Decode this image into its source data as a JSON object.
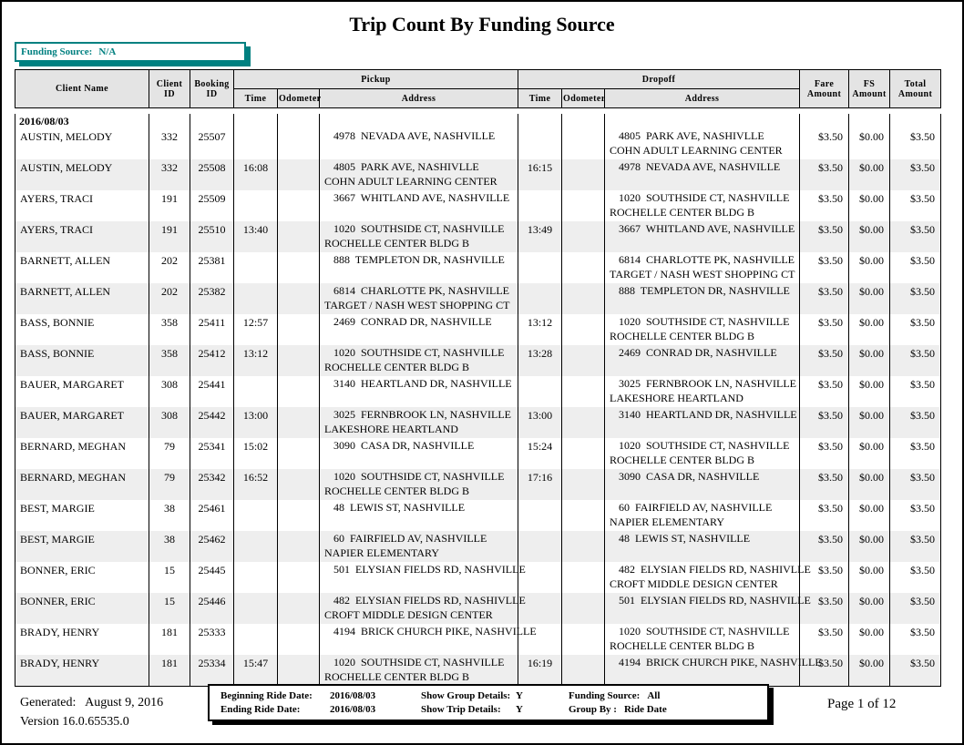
{
  "title": "Trip Count By Funding Source",
  "funding_box": {
    "label": "Funding Source:",
    "value": "N/A"
  },
  "table": {
    "headers": {
      "client_name": "Client Name",
      "client_id": "Client ID",
      "booking_id": "Booking ID",
      "pickup": "Pickup",
      "dropoff": "Dropoff",
      "time": "Time",
      "odometer": "Odometer",
      "address": "Address",
      "fare": "Fare Amount",
      "fs": "FS Amount",
      "total": "Total Amount"
    },
    "group_date": "2016/08/03",
    "rows": [
      {
        "client_name": "AUSTIN, MELODY",
        "client_id": "332",
        "booking_id": "25507",
        "p_time": "",
        "p_odo": "",
        "p_addr1": "4978  NEVADA AVE, NASHVILLE",
        "p_addr2": "",
        "d_time": "",
        "d_odo": "",
        "d_addr1": "4805  PARK AVE, NASHIVLLE",
        "d_addr2": "COHN ADULT LEARNING CENTER",
        "fare": "$3.50",
        "fs": "$0.00",
        "total": "$3.50"
      },
      {
        "client_name": "AUSTIN, MELODY",
        "client_id": "332",
        "booking_id": "25508",
        "p_time": "16:08",
        "p_odo": "",
        "p_addr1": "4805  PARK AVE, NASHIVLLE",
        "p_addr2": "COHN ADULT LEARNING CENTER",
        "d_time": "16:15",
        "d_odo": "",
        "d_addr1": "4978  NEVADA AVE, NASHVILLE",
        "d_addr2": "",
        "fare": "$3.50",
        "fs": "$0.00",
        "total": "$3.50"
      },
      {
        "client_name": "AYERS, TRACI",
        "client_id": "191",
        "booking_id": "25509",
        "p_time": "",
        "p_odo": "",
        "p_addr1": "3667  WHITLAND AVE, NASHVILLE",
        "p_addr2": "",
        "d_time": "",
        "d_odo": "",
        "d_addr1": "1020  SOUTHSIDE CT, NASHVILLE",
        "d_addr2": "ROCHELLE CENTER BLDG B",
        "fare": "$3.50",
        "fs": "$0.00",
        "total": "$3.50"
      },
      {
        "client_name": "AYERS, TRACI",
        "client_id": "191",
        "booking_id": "25510",
        "p_time": "13:40",
        "p_odo": "",
        "p_addr1": "1020  SOUTHSIDE CT, NASHVILLE",
        "p_addr2": "ROCHELLE CENTER BLDG B",
        "d_time": "13:49",
        "d_odo": "",
        "d_addr1": "3667  WHITLAND AVE, NASHVILLE",
        "d_addr2": "",
        "fare": "$3.50",
        "fs": "$0.00",
        "total": "$3.50"
      },
      {
        "client_name": "BARNETT, ALLEN",
        "client_id": "202",
        "booking_id": "25381",
        "p_time": "",
        "p_odo": "",
        "p_addr1": "888  TEMPLETON DR, NASHVILLE",
        "p_addr2": "",
        "d_time": "",
        "d_odo": "",
        "d_addr1": "6814  CHARLOTTE PK, NASHVILLE",
        "d_addr2": "TARGET / NASH WEST SHOPPING CT",
        "fare": "$3.50",
        "fs": "$0.00",
        "total": "$3.50"
      },
      {
        "client_name": "BARNETT, ALLEN",
        "client_id": "202",
        "booking_id": "25382",
        "p_time": "",
        "p_odo": "",
        "p_addr1": "6814  CHARLOTTE PK, NASHVILLE",
        "p_addr2": "TARGET / NASH WEST SHOPPING CT",
        "d_time": "",
        "d_odo": "",
        "d_addr1": "888  TEMPLETON DR, NASHVILLE",
        "d_addr2": "",
        "fare": "$3.50",
        "fs": "$0.00",
        "total": "$3.50"
      },
      {
        "client_name": "BASS, BONNIE",
        "client_id": "358",
        "booking_id": "25411",
        "p_time": "12:57",
        "p_odo": "",
        "p_addr1": "2469  CONRAD DR, NASHVILLE",
        "p_addr2": "",
        "d_time": "13:12",
        "d_odo": "",
        "d_addr1": "1020  SOUTHSIDE CT, NASHVILLE",
        "d_addr2": "ROCHELLE CENTER BLDG B",
        "fare": "$3.50",
        "fs": "$0.00",
        "total": "$3.50"
      },
      {
        "client_name": "BASS, BONNIE",
        "client_id": "358",
        "booking_id": "25412",
        "p_time": "13:12",
        "p_odo": "",
        "p_addr1": "1020  SOUTHSIDE CT, NASHVILLE",
        "p_addr2": "ROCHELLE CENTER BLDG B",
        "d_time": "13:28",
        "d_odo": "",
        "d_addr1": "2469  CONRAD DR, NASHVILLE",
        "d_addr2": "",
        "fare": "$3.50",
        "fs": "$0.00",
        "total": "$3.50"
      },
      {
        "client_name": "BAUER, MARGARET",
        "client_id": "308",
        "booking_id": "25441",
        "p_time": "",
        "p_odo": "",
        "p_addr1": "3140  HEARTLAND DR, NASHVILLE",
        "p_addr2": "",
        "d_time": "",
        "d_odo": "",
        "d_addr1": "3025  FERNBROOK LN, NASHVILLE",
        "d_addr2": "LAKESHORE HEARTLAND",
        "fare": "$3.50",
        "fs": "$0.00",
        "total": "$3.50"
      },
      {
        "client_name": "BAUER, MARGARET",
        "client_id": "308",
        "booking_id": "25442",
        "p_time": "13:00",
        "p_odo": "",
        "p_addr1": "3025  FERNBROOK LN, NASHVILLE",
        "p_addr2": "LAKESHORE HEARTLAND",
        "d_time": "13:00",
        "d_odo": "",
        "d_addr1": "3140  HEARTLAND DR, NASHVILLE",
        "d_addr2": "",
        "fare": "$3.50",
        "fs": "$0.00",
        "total": "$3.50"
      },
      {
        "client_name": "BERNARD, MEGHAN",
        "client_id": "79",
        "booking_id": "25341",
        "p_time": "15:02",
        "p_odo": "",
        "p_addr1": "3090  CASA DR, NASHVILLE",
        "p_addr2": "",
        "d_time": "15:24",
        "d_odo": "",
        "d_addr1": "1020  SOUTHSIDE CT, NASHVILLE",
        "d_addr2": "ROCHELLE CENTER BLDG B",
        "fare": "$3.50",
        "fs": "$0.00",
        "total": "$3.50"
      },
      {
        "client_name": "BERNARD, MEGHAN",
        "client_id": "79",
        "booking_id": "25342",
        "p_time": "16:52",
        "p_odo": "",
        "p_addr1": "1020  SOUTHSIDE CT, NASHVILLE",
        "p_addr2": "ROCHELLE CENTER BLDG B",
        "d_time": "17:16",
        "d_odo": "",
        "d_addr1": "3090  CASA DR, NASHVILLE",
        "d_addr2": "",
        "fare": "$3.50",
        "fs": "$0.00",
        "total": "$3.50"
      },
      {
        "client_name": "BEST, MARGIE",
        "client_id": "38",
        "booking_id": "25461",
        "p_time": "",
        "p_odo": "",
        "p_addr1": "48  LEWIS ST, NASHVILLE",
        "p_addr2": "",
        "d_time": "",
        "d_odo": "",
        "d_addr1": "60  FAIRFIELD AV, NASHVILLE",
        "d_addr2": "NAPIER ELEMENTARY",
        "fare": "$3.50",
        "fs": "$0.00",
        "total": "$3.50"
      },
      {
        "client_name": "BEST, MARGIE",
        "client_id": "38",
        "booking_id": "25462",
        "p_time": "",
        "p_odo": "",
        "p_addr1": "60  FAIRFIELD AV, NASHVILLE",
        "p_addr2": "NAPIER ELEMENTARY",
        "d_time": "",
        "d_odo": "",
        "d_addr1": "48  LEWIS ST, NASHVILLE",
        "d_addr2": "",
        "fare": "$3.50",
        "fs": "$0.00",
        "total": "$3.50"
      },
      {
        "client_name": "BONNER, ERIC",
        "client_id": "15",
        "booking_id": "25445",
        "p_time": "",
        "p_odo": "",
        "p_addr1": "501  ELYSIAN FIELDS RD, NASHVILLE",
        "p_addr2": "",
        "d_time": "",
        "d_odo": "",
        "d_addr1": "482  ELYSIAN FIELDS RD, NASHIVLLE",
        "d_addr2": "CROFT MIDDLE DESIGN CENTER",
        "fare": "$3.50",
        "fs": "$0.00",
        "total": "$3.50"
      },
      {
        "client_name": "BONNER, ERIC",
        "client_id": "15",
        "booking_id": "25446",
        "p_time": "",
        "p_odo": "",
        "p_addr1": "482  ELYSIAN FIELDS RD, NASHIVLLE",
        "p_addr2": "CROFT MIDDLE DESIGN CENTER",
        "d_time": "",
        "d_odo": "",
        "d_addr1": "501  ELYSIAN FIELDS RD, NASHVILLE",
        "d_addr2": "",
        "fare": "$3.50",
        "fs": "$0.00",
        "total": "$3.50"
      },
      {
        "client_name": "BRADY, HENRY",
        "client_id": "181",
        "booking_id": "25333",
        "p_time": "",
        "p_odo": "",
        "p_addr1": "4194  BRICK CHURCH PIKE, NASHVILLE",
        "p_addr2": "",
        "d_time": "",
        "d_odo": "",
        "d_addr1": "1020  SOUTHSIDE CT, NASHVILLE",
        "d_addr2": "ROCHELLE CENTER BLDG B",
        "fare": "$3.50",
        "fs": "$0.00",
        "total": "$3.50"
      },
      {
        "client_name": "BRADY, HENRY",
        "client_id": "181",
        "booking_id": "25334",
        "p_time": "15:47",
        "p_odo": "",
        "p_addr1": "1020  SOUTHSIDE CT, NASHVILLE",
        "p_addr2": "ROCHELLE CENTER BLDG B",
        "d_time": "16:19",
        "d_odo": "",
        "d_addr1": "4194  BRICK CHURCH PIKE, NASHVILLE",
        "d_addr2": "",
        "fare": "$3.50",
        "fs": "$0.00",
        "total": "$3.50"
      }
    ]
  },
  "footer": {
    "generated_label": "Generated:",
    "generated_value": "August 9, 2016",
    "version": "Version 16.0.65535.0",
    "page": "Page 1 of 12",
    "params": {
      "beginning_label": "Beginning Ride Date:",
      "beginning_value": "2016/08/03",
      "ending_label": "Ending Ride Date:",
      "ending_value": "2016/08/03",
      "show_group_label": "Show Group Details:",
      "show_group_value": "Y",
      "show_trip_label": "Show Trip Details:",
      "show_trip_value": "Y",
      "funding_label": "Funding Source:",
      "funding_value": "All",
      "groupby_label": "Group By :",
      "groupby_value": "Ride Date"
    }
  },
  "colors": {
    "accent_teal": "#008080",
    "header_bg": "#e4e4e4",
    "stripe_bg": "#eeeeee"
  }
}
